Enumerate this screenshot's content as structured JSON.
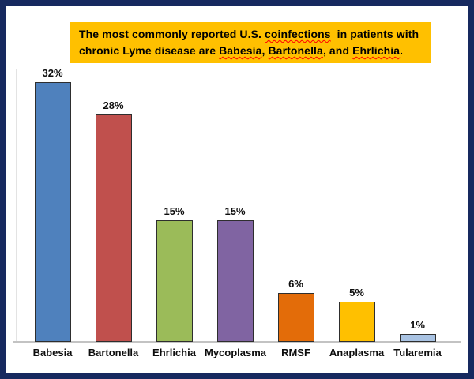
{
  "frame": {
    "border_color": "#16295F",
    "background": "#FFFFFF"
  },
  "callout": {
    "background": "#FFC000",
    "text_color": "#000000",
    "spellcheck_underline_color": "#FF0000",
    "full_text": "The most commonly reported U.S. coinfections  in patients with chronic Lyme disease are Babesia, Bartonella, and Ehrlichia.",
    "lines": [
      [
        {
          "t": "The most commonly reported U.S. ",
          "sp": false
        },
        {
          "t": "coinfections",
          "sp": true
        },
        {
          "t": "  in patients with",
          "sp": false
        }
      ],
      [
        {
          "t": "chronic Lyme disease are ",
          "sp": false
        },
        {
          "t": "Babesia",
          "sp": true
        },
        {
          "t": ", ",
          "sp": false
        },
        {
          "t": "Bartonella",
          "sp": true
        },
        {
          "t": ", and ",
          "sp": false
        },
        {
          "t": "Ehrlichia",
          "sp": true
        },
        {
          "t": ".",
          "sp": false
        }
      ]
    ]
  },
  "chart_data": {
    "type": "bar",
    "title": "",
    "xlabel": "",
    "ylabel": "",
    "categories": [
      "Babesia",
      "Bartonella",
      "Ehrlichia",
      "Mycoplasma",
      "RMSF",
      "Anaplasma",
      "Tularemia"
    ],
    "values": [
      32,
      28,
      15,
      15,
      6,
      5,
      1
    ],
    "value_labels": [
      "32%",
      "28%",
      "15%",
      "15%",
      "6%",
      "5%",
      "1%"
    ],
    "bar_colors": [
      "#4F81BD",
      "#C0504D",
      "#9BBB59",
      "#8064A2",
      "#E36C09",
      "#FFC000",
      "#A9C3E3"
    ],
    "bar_border_color": "#2E2E2E",
    "axis_line_color": "#C3C3C3",
    "y_gridline_color": "#E3E3E3",
    "ylim": [
      0,
      35
    ],
    "grid": false,
    "legend": false,
    "data_labels_position": "above-bar"
  }
}
